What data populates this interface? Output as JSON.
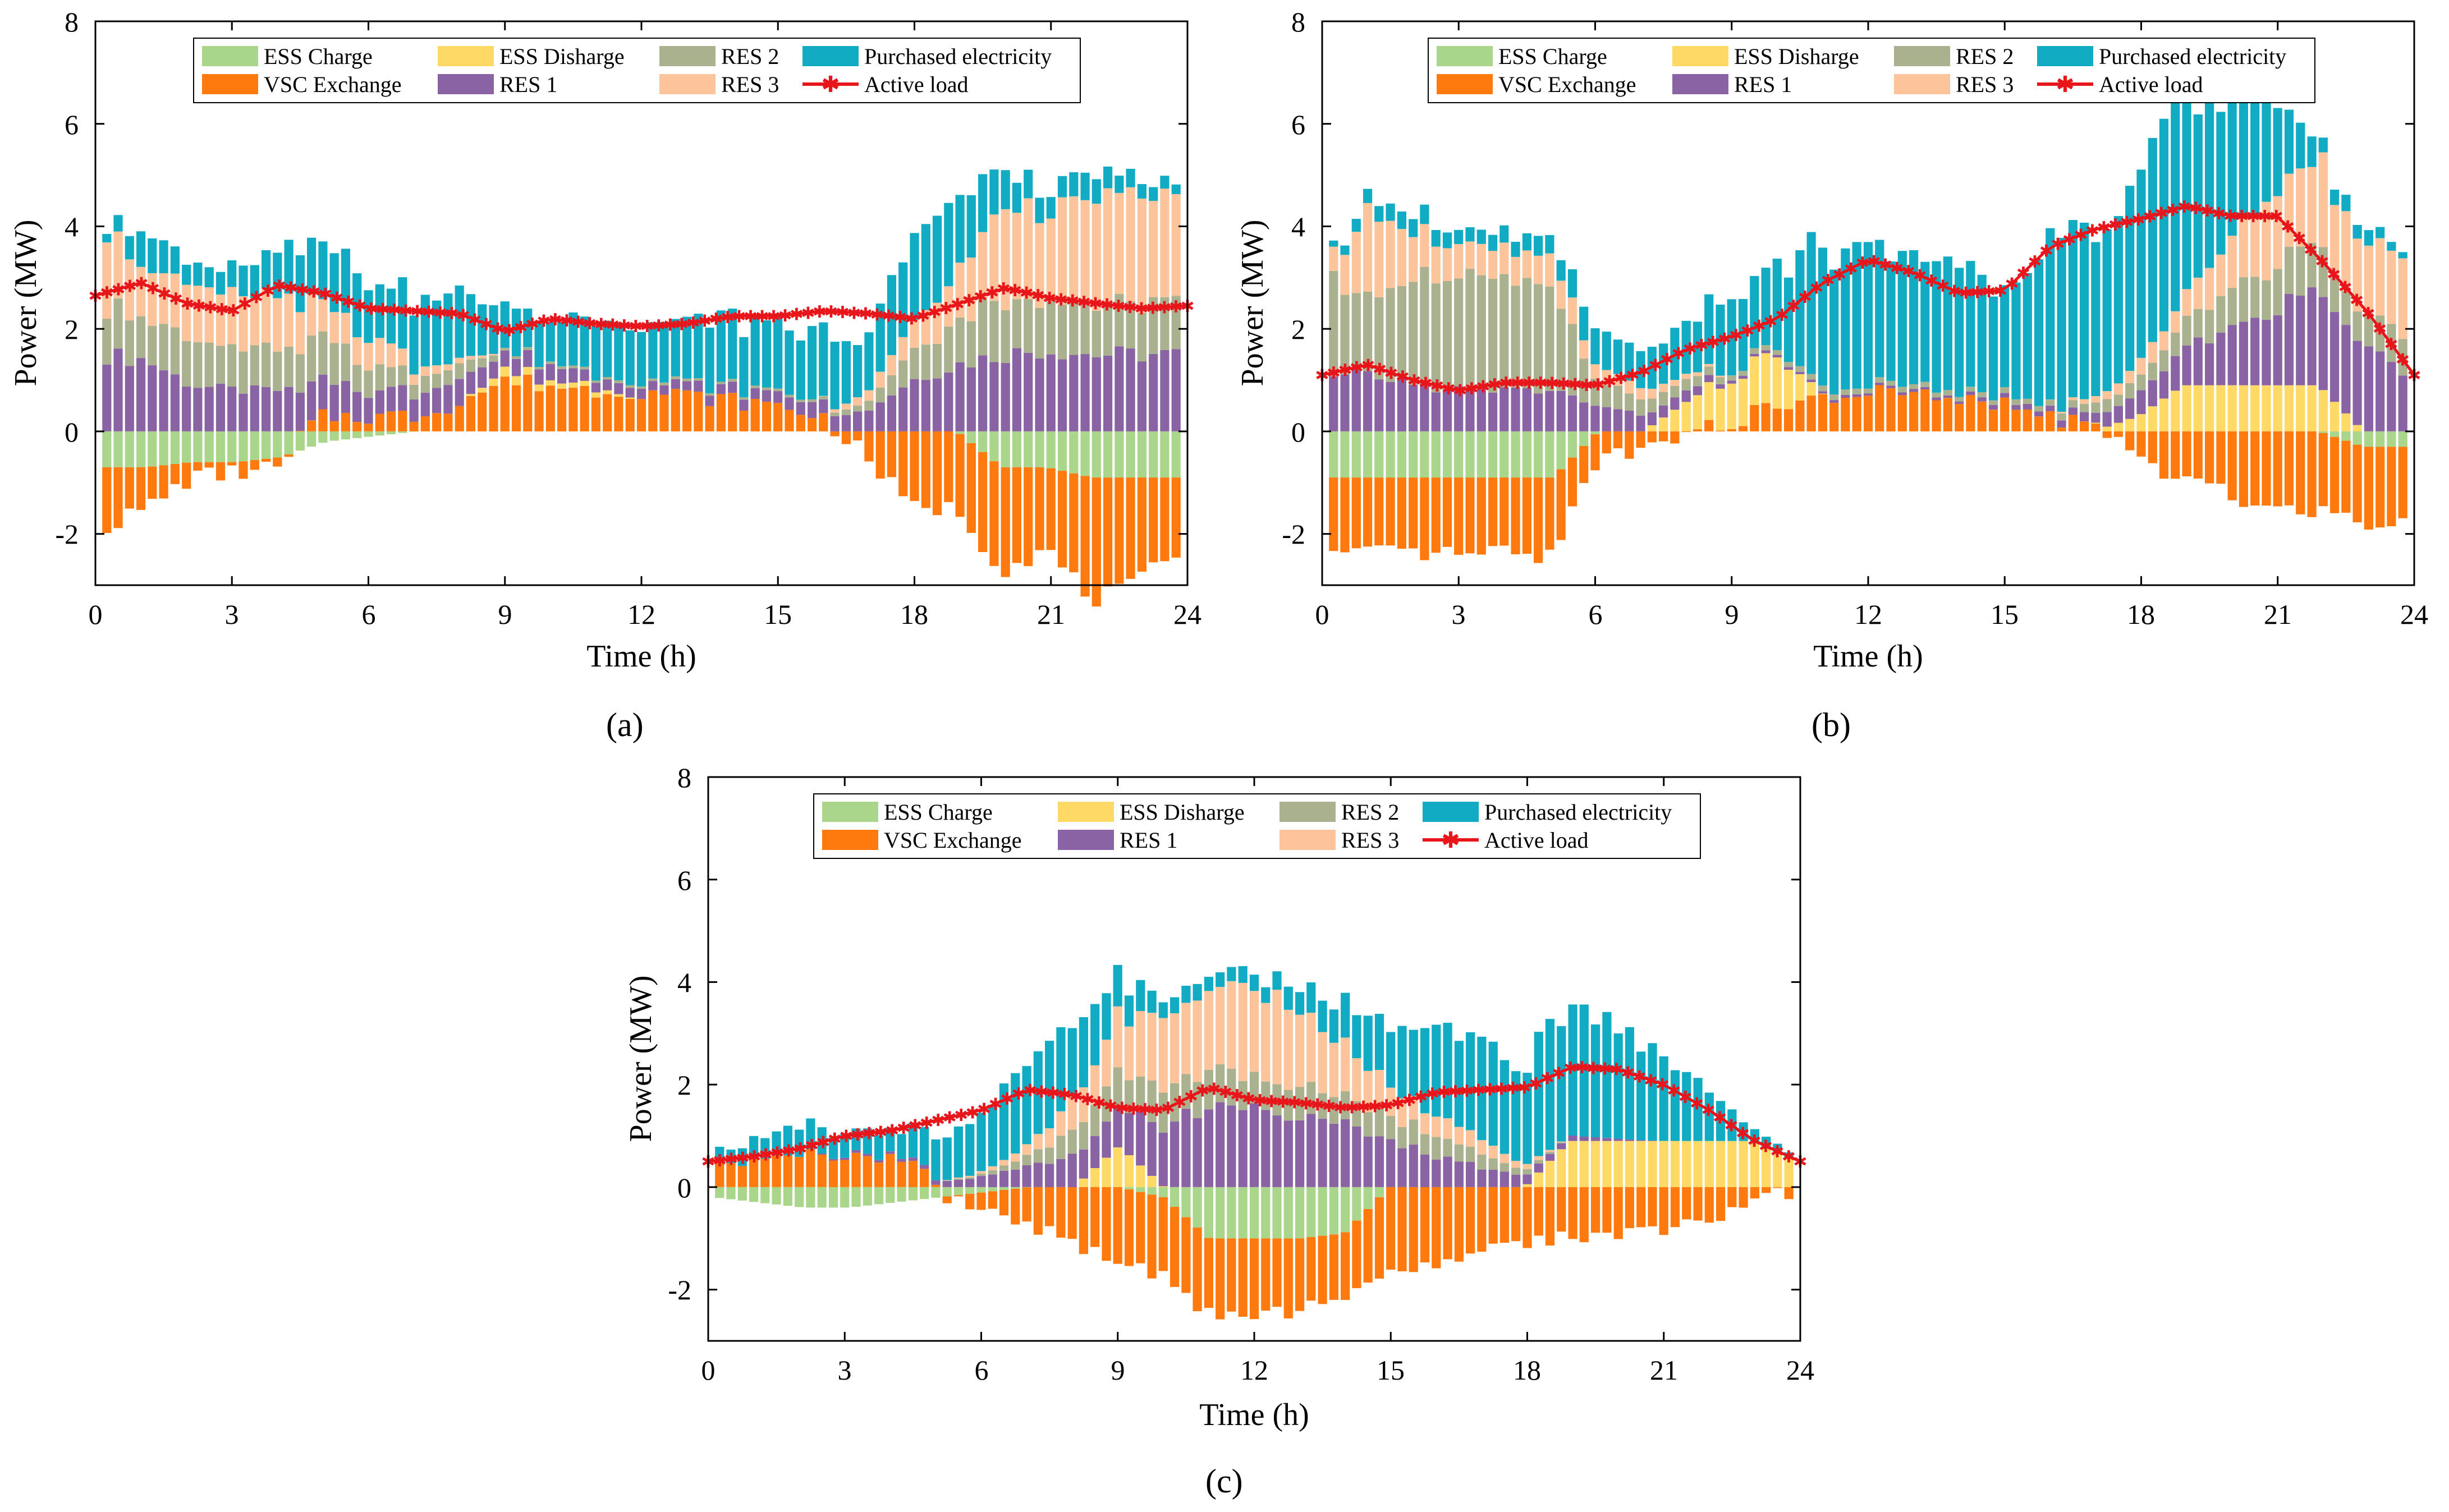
{
  "figure": {
    "panel_labels": [
      "(a)",
      "(b)",
      "(c)"
    ]
  },
  "colors": {
    "ess_charge": "#a9d68a",
    "ess_discharge": "#ffd966",
    "res2": "#a9b18e",
    "purchased": "#12abc4",
    "vsc": "#ff7a0e",
    "res1": "#8a63a4",
    "res3": "#fcc49a",
    "load": "#e8161b"
  },
  "chart_data": [
    {
      "type": "bar",
      "panel": "(a)",
      "xlabel": "Time (h)",
      "ylabel": "Power (MW)",
      "xlim": [
        0,
        24
      ],
      "ylim": [
        -3,
        8
      ],
      "xticks": [
        "0",
        "3",
        "6",
        "9",
        "12",
        "15",
        "18",
        "21",
        "24"
      ],
      "yticks": [
        "-2",
        "0",
        "2",
        "4",
        "6",
        "8"
      ],
      "legend": [
        "ESS Charge",
        "ESS Disharge",
        "RES 2",
        "Purchased electricity",
        "VSC Exchange",
        "RES 1",
        "RES 3",
        "Active load"
      ],
      "hour_points": [
        0,
        1,
        2,
        3,
        4,
        5,
        6,
        7,
        8,
        9,
        10,
        11,
        12,
        13,
        14,
        15,
        16,
        17,
        18,
        19,
        20,
        21,
        22,
        23,
        24
      ],
      "series": [
        {
          "name": "Active load",
          "values": [
            2.65,
            2.9,
            2.5,
            2.35,
            2.85,
            2.7,
            2.4,
            2.35,
            2.3,
            1.95,
            2.2,
            2.1,
            2.05,
            2.1,
            2.25,
            2.25,
            2.35,
            2.3,
            2.2,
            2.5,
            2.8,
            2.6,
            2.5,
            2.4,
            2.45
          ]
        },
        {
          "name": "RES 1",
          "values": [
            1.5,
            1.4,
            0.9,
            0.8,
            0.8,
            0.7,
            0.5,
            0.5,
            0.5,
            0.3,
            0.3,
            0.2,
            0.2,
            0.2,
            0.2,
            0.25,
            0.3,
            0.4,
            1.0,
            1.3,
            1.5,
            1.6,
            1.5,
            1.5,
            1.5
          ]
        },
        {
          "name": "RES 2",
          "values": [
            1.0,
            0.8,
            0.9,
            0.8,
            0.8,
            0.8,
            0.5,
            0.3,
            0.3,
            0.05,
            0.05,
            0.05,
            0.05,
            0.05,
            0.05,
            0.05,
            0.05,
            0.15,
            0.6,
            0.9,
            1.1,
            1.0,
            1.0,
            1.0,
            1.0
          ]
        },
        {
          "name": "RES 3",
          "values": [
            1.8,
            0.9,
            1.1,
            1.0,
            1.0,
            0.6,
            0.6,
            0.2,
            0.1,
            0.0,
            0.0,
            0.0,
            0.0,
            0.0,
            0.0,
            0.0,
            0.0,
            0.2,
            0.5,
            0.9,
            1.8,
            1.8,
            2.0,
            2.1,
            2.0
          ]
        },
        {
          "name": "Purchased electricity",
          "values": [
            0.1,
            0.7,
            0.4,
            0.5,
            1.0,
            1.3,
            1.1,
            1.3,
            1.3,
            0.85,
            0.8,
            1.2,
            1.1,
            1.2,
            1.3,
            1.3,
            1.3,
            1.0,
            1.8,
            1.4,
            0.8,
            0.4,
            0.5,
            0.3,
            0.2
          ]
        },
        {
          "name": "VSC Exchange",
          "values": [
            -1.2,
            -0.8,
            -0.3,
            -0.2,
            -0.2,
            0.3,
            0.3,
            0.3,
            0.6,
            1.0,
            0.9,
            0.8,
            0.8,
            0.7,
            0.6,
            0.5,
            0.3,
            -0.5,
            -1.5,
            -1.5,
            -2.0,
            -1.6,
            -2.4,
            -2.1,
            -1.3
          ]
        },
        {
          "name": "ESS Charge",
          "values": [
            -0.7,
            -0.7,
            -0.6,
            -0.6,
            -0.5,
            -0.2,
            -0.1,
            0.0,
            0.0,
            0.0,
            0.0,
            0.0,
            0.0,
            0.0,
            0.0,
            0.0,
            0.0,
            0.0,
            0.0,
            0.0,
            -0.7,
            -0.7,
            -0.9,
            -0.9,
            -0.9
          ]
        },
        {
          "name": "ESS Disharge",
          "values": [
            0,
            0,
            0,
            0,
            0,
            0,
            0,
            0,
            0,
            0.2,
            0.1,
            0.1,
            0,
            0,
            0,
            0,
            0,
            0,
            0,
            0,
            0,
            0,
            0,
            0,
            0
          ]
        }
      ]
    },
    {
      "type": "bar",
      "panel": "(b)",
      "xlabel": "Time (h)",
      "ylabel": "Power (MW)",
      "xlim": [
        0,
        24
      ],
      "ylim": [
        -3,
        8
      ],
      "xticks": [
        "0",
        "3",
        "6",
        "9",
        "12",
        "15",
        "18",
        "21",
        "24"
      ],
      "yticks": [
        "-2",
        "0",
        "2",
        "4",
        "6",
        "8"
      ],
      "legend": [
        "ESS Charge",
        "ESS Disharge",
        "RES 2",
        "Purchased electricity",
        "VSC Exchange",
        "RES 1",
        "RES 3",
        "Active load"
      ],
      "hour_points": [
        0,
        1,
        2,
        3,
        4,
        5,
        6,
        7,
        8,
        9,
        10,
        11,
        12,
        13,
        14,
        15,
        16,
        17,
        18,
        19,
        20,
        21,
        22,
        23,
        24
      ],
      "series": [
        {
          "name": "Active load",
          "values": [
            1.1,
            1.3,
            1.0,
            0.8,
            0.95,
            0.95,
            0.9,
            1.15,
            1.6,
            1.85,
            2.2,
            2.9,
            3.35,
            3.1,
            2.7,
            2.75,
            3.6,
            3.95,
            4.15,
            4.4,
            4.2,
            4.2,
            3.3,
            2.3,
            1.1
          ]
        },
        {
          "name": "RES 1",
          "values": [
            1.0,
            1.1,
            0.9,
            0.8,
            0.8,
            0.8,
            0.5,
            0.3,
            0.2,
            0.05,
            0.05,
            0.05,
            0.05,
            0.05,
            0.05,
            0.1,
            0.1,
            0.2,
            0.4,
            0.7,
            1.1,
            1.5,
            1.8,
            1.7,
            1.0
          ]
        },
        {
          "name": "RES 2",
          "values": [
            2.0,
            1.4,
            2.0,
            2.2,
            2.0,
            2.0,
            0.5,
            0.3,
            0.2,
            0.1,
            0.1,
            0.1,
            0.1,
            0.1,
            0.1,
            0.1,
            0.1,
            0.2,
            0.3,
            0.5,
            0.8,
            0.8,
            0.9,
            0.6,
            0.8
          ]
        },
        {
          "name": "RES 3",
          "values": [
            0.3,
            1.7,
            0.9,
            0.6,
            0.6,
            0.6,
            0.3,
            0.2,
            0.1,
            0.0,
            0.0,
            0.0,
            0.0,
            0.0,
            0.0,
            0.0,
            0.0,
            0.1,
            0.3,
            0.5,
            0.9,
            1.5,
            1.7,
            1.3,
            1.5
          ]
        },
        {
          "name": "Purchased electricity",
          "values": [
            0.1,
            0.3,
            0.4,
            0.3,
            0.3,
            0.4,
            0.7,
            0.8,
            1.0,
            1.6,
            1.6,
            2.8,
            2.6,
            2.7,
            2.3,
            2.0,
            3.2,
            3.2,
            3.7,
            3.7,
            3.0,
            2.0,
            0.3,
            0.3,
            0.1
          ]
        },
        {
          "name": "VSC Exchange",
          "values": [
            -1.5,
            -1.5,
            -1.5,
            -1.5,
            -1.5,
            -1.5,
            -0.5,
            -0.3,
            0.0,
            0.2,
            0.5,
            0.6,
            0.8,
            0.7,
            0.6,
            0.5,
            0.3,
            0.1,
            -0.5,
            -1.0,
            -1.2,
            -1.5,
            -1.5,
            -1.5,
            -1.3
          ]
        },
        {
          "name": "ESS Charge",
          "values": [
            -0.9,
            -0.9,
            -0.9,
            -0.9,
            -0.9,
            -0.9,
            0,
            0,
            0,
            0,
            0,
            0,
            0,
            0,
            0,
            0,
            0,
            0,
            0,
            0,
            0,
            0,
            0,
            -0.3,
            -0.3
          ]
        },
        {
          "name": "ESS Disharge",
          "values": [
            0,
            0,
            0,
            0,
            0,
            0,
            0,
            0,
            0.6,
            0.9,
            1.0,
            0,
            0,
            0,
            0,
            0,
            0,
            0,
            0.3,
            0.9,
            0.9,
            0.9,
            0.9,
            0,
            0
          ]
        }
      ]
    },
    {
      "type": "bar",
      "panel": "(c)",
      "xlabel": "Time (h)",
      "ylabel": "Power (MW)",
      "xlim": [
        0,
        24
      ],
      "ylim": [
        -3,
        8
      ],
      "xticks": [
        "0",
        "3",
        "6",
        "9",
        "12",
        "15",
        "18",
        "21",
        "24"
      ],
      "yticks": [
        "-2",
        "0",
        "2",
        "4",
        "6",
        "8"
      ],
      "legend": [
        "ESS Charge",
        "ESS Disharge",
        "RES 2",
        "Purchased electricity",
        "VSC Exchange",
        "RES 1",
        "RES 3",
        "Active load"
      ],
      "hour_points": [
        0,
        1,
        2,
        3,
        4,
        5,
        6,
        7,
        8,
        9,
        10,
        11,
        12,
        13,
        14,
        15,
        16,
        17,
        18,
        19,
        20,
        21,
        22,
        23,
        24
      ],
      "series": [
        {
          "name": "Active load",
          "values": [
            0.5,
            0.6,
            0.75,
            1.0,
            1.1,
            1.3,
            1.5,
            1.9,
            1.8,
            1.55,
            1.5,
            1.95,
            1.7,
            1.65,
            1.55,
            1.6,
            1.85,
            1.9,
            1.95,
            2.35,
            2.3,
            2.0,
            1.5,
            0.9,
            0.5
          ]
        },
        {
          "name": "RES 1",
          "values": [
            0.0,
            0.0,
            0.0,
            0.05,
            0.05,
            0.1,
            0.2,
            0.4,
            0.6,
            0.8,
            1.2,
            1.6,
            1.6,
            1.4,
            1.2,
            0.9,
            0.6,
            0.4,
            0.2,
            0.1,
            0.05,
            0.0,
            0.0,
            0.0,
            0.0
          ]
        },
        {
          "name": "RES 2",
          "values": [
            0.0,
            0.0,
            0.0,
            0.0,
            0.0,
            0.0,
            0.05,
            0.2,
            0.5,
            0.7,
            0.8,
            0.7,
            0.6,
            0.6,
            0.5,
            0.5,
            0.4,
            0.3,
            0.1,
            0.0,
            0.0,
            0.0,
            0.0,
            0.0,
            0.0
          ]
        },
        {
          "name": "RES 3",
          "values": [
            0.0,
            0.0,
            0.0,
            0.0,
            0.0,
            0.0,
            0.05,
            0.2,
            0.6,
            1.1,
            1.3,
            1.5,
            1.8,
            1.5,
            1.0,
            0.6,
            0.4,
            0.3,
            0.1,
            0.0,
            0.0,
            0.0,
            0.0,
            0.0,
            0.0
          ]
        },
        {
          "name": "Purchased electricity",
          "values": [
            0.2,
            0.4,
            0.6,
            0.4,
            0.5,
            0.8,
            1.2,
            1.6,
            1.5,
            0.8,
            0.3,
            0.3,
            0.3,
            0.5,
            0.8,
            1.2,
            1.6,
            1.9,
            2.0,
            2.5,
            2.3,
            1.7,
            1.1,
            0.3,
            0.1
          ]
        },
        {
          "name": "VSC Exchange",
          "values": [
            0.4,
            0.5,
            0.6,
            0.7,
            0.6,
            0.0,
            -0.3,
            -0.7,
            -1.2,
            -1.4,
            -1.6,
            -1.5,
            -1.5,
            -1.4,
            -1.4,
            -1.5,
            -1.5,
            -1.3,
            -1.1,
            -0.9,
            -1.0,
            -0.8,
            -0.6,
            -0.3,
            -0.1
          ]
        },
        {
          "name": "ESS Charge",
          "values": [
            -0.2,
            -0.3,
            -0.4,
            -0.4,
            -0.3,
            -0.2,
            -0.1,
            0.0,
            0.0,
            0.0,
            -0.2,
            -1.0,
            -1.0,
            -1.0,
            -0.9,
            0.0,
            0.0,
            0.0,
            0.0,
            0.0,
            0.0,
            0.0,
            0.0,
            0.0,
            0.0
          ]
        },
        {
          "name": "ESS Disharge",
          "values": [
            0,
            0,
            0,
            0,
            0,
            0,
            0,
            0,
            0,
            0.8,
            0,
            0,
            0,
            0,
            0,
            0,
            0,
            0,
            0,
            0.9,
            0.9,
            0.9,
            0.9,
            0.9,
            0.5
          ]
        }
      ]
    }
  ]
}
